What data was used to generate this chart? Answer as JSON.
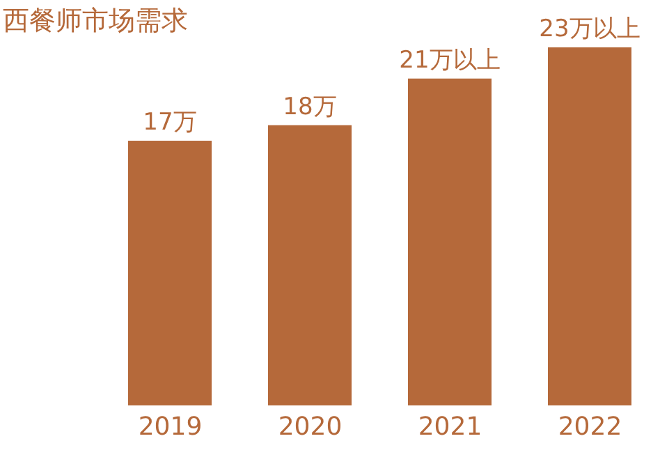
{
  "chart_data": {
    "type": "bar",
    "title": "西餐师市场需求",
    "categories": [
      "2019",
      "2020",
      "2021",
      "2022"
    ],
    "values": [
      17,
      18,
      21,
      23
    ],
    "value_labels": [
      "17万",
      "18万",
      "21万以上",
      "23万以上"
    ],
    "color": "#b5693a",
    "tick_labels": "x"
  }
}
